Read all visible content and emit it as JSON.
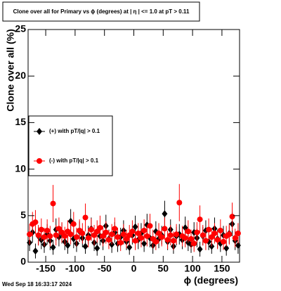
{
  "chart_data": {
    "type": "scatter",
    "title": "Clone  over all for Primary vs ϕ (degrees) at |  η | <= 1.0 at pT > 0.11",
    "xlabel": "ϕ (degrees)",
    "ylabel": "Clone  over all (%)",
    "footer": "Wed Sep 18 16:33:17 2024",
    "xlim": [
      -180,
      180
    ],
    "ylim": [
      0,
      25
    ],
    "xticks": [
      -150,
      -100,
      -50,
      0,
      50,
      100,
      150
    ],
    "yticks": [
      0,
      5,
      10,
      15,
      20,
      25
    ],
    "x": [
      -177.5,
      -172.5,
      -167.5,
      -162.5,
      -157.5,
      -152.5,
      -147.5,
      -142.5,
      -137.5,
      -132.5,
      -127.5,
      -122.5,
      -117.5,
      -112.5,
      -107.5,
      -102.5,
      -97.5,
      -92.5,
      -87.5,
      -82.5,
      -77.5,
      -72.5,
      -67.5,
      -62.5,
      -57.5,
      -52.5,
      -47.5,
      -42.5,
      -37.5,
      -32.5,
      -27.5,
      -22.5,
      -17.5,
      -12.5,
      -7.5,
      -2.5,
      2.5,
      7.5,
      12.5,
      17.5,
      22.5,
      27.5,
      32.5,
      37.5,
      42.5,
      47.5,
      52.5,
      57.5,
      62.5,
      67.5,
      72.5,
      77.5,
      82.5,
      87.5,
      92.5,
      97.5,
      102.5,
      107.5,
      112.5,
      117.5,
      122.5,
      127.5,
      132.5,
      137.5,
      142.5,
      147.5,
      152.5,
      157.5,
      162.5,
      167.5,
      172.5,
      177.5
    ],
    "series": [
      {
        "name": "(+) with pT/|q| > 0.1",
        "color": "#000000",
        "values": [
          2.1,
          3.2,
          1.2,
          2.8,
          2.4,
          1.9,
          3.0,
          2.3,
          1.6,
          3.5,
          2.7,
          3.1,
          2.2,
          1.8,
          4.4,
          2.5,
          2.0,
          3.3,
          2.6,
          1.7,
          2.9,
          3.6,
          2.1,
          1.5,
          2.8,
          2.3,
          3.9,
          2.5,
          1.9,
          3.2,
          2.0,
          2.7,
          3.4,
          2.2,
          1.6,
          2.9,
          3.8,
          2.4,
          3.1,
          2.0,
          4.0,
          2.6,
          1.8,
          3.3,
          2.5,
          2.9,
          5.2,
          2.2,
          3.5,
          1.7,
          2.8,
          3.0,
          2.4,
          3.7,
          2.1,
          1.9,
          3.2,
          2.6,
          1.4,
          2.8,
          3.4,
          2.2,
          1.7,
          3.6,
          2.5,
          2.0,
          2.9,
          1.5,
          3.1,
          4.1,
          2.3,
          1.8
        ],
        "errors": [
          0.9,
          1.1,
          0.8,
          1.0,
          1.0,
          0.9,
          1.1,
          1.0,
          0.8,
          1.2,
          1.0,
          1.1,
          0.9,
          0.9,
          1.3,
          1.0,
          0.9,
          1.1,
          1.0,
          0.8,
          1.0,
          1.2,
          0.9,
          0.8,
          1.0,
          1.0,
          1.2,
          1.0,
          0.9,
          1.1,
          0.9,
          1.0,
          1.1,
          0.9,
          0.8,
          1.0,
          1.2,
          1.0,
          1.1,
          0.9,
          1.2,
          1.0,
          0.9,
          1.1,
          1.0,
          1.0,
          1.4,
          0.9,
          1.1,
          0.8,
          1.0,
          1.1,
          1.0,
          1.2,
          0.9,
          0.9,
          1.1,
          1.0,
          0.8,
          1.0,
          1.1,
          0.9,
          0.8,
          1.2,
          1.0,
          0.9,
          1.0,
          0.8,
          1.1,
          1.3,
          1.0,
          0.9
        ]
      },
      {
        "name": "(-) with pT/|q| > 0.1",
        "color": "#ff0000",
        "values": [
          3.0,
          4.1,
          4.3,
          2.9,
          3.5,
          2.7,
          3.4,
          2.8,
          6.3,
          2.9,
          3.6,
          3.2,
          2.8,
          3.3,
          3.0,
          4.1,
          2.7,
          3.4,
          3.1,
          4.8,
          2.6,
          3.5,
          2.9,
          3.3,
          3.7,
          2.8,
          3.2,
          2.4,
          3.0,
          3.6,
          2.7,
          2.1,
          3.0,
          2.5,
          2.9,
          3.3,
          2.3,
          3.1,
          2.6,
          3.4,
          2.8,
          3.9,
          2.5,
          2.2,
          3.1,
          2.7,
          3.6,
          2.4,
          2.9,
          2.3,
          3.0,
          6.4,
          2.8,
          2.6,
          3.3,
          2.5,
          2.0,
          3.2,
          4.6,
          2.9,
          2.3,
          3.5,
          2.7,
          3.1,
          2.4,
          3.4,
          2.2,
          2.8,
          3.0,
          4.9,
          2.6,
          3.1
        ],
        "errors": [
          1.1,
          1.3,
          1.3,
          1.1,
          1.2,
          1.0,
          1.2,
          1.1,
          2.0,
          1.1,
          1.2,
          1.1,
          1.0,
          1.2,
          1.1,
          1.3,
          1.0,
          1.2,
          1.1,
          1.5,
          1.0,
          1.2,
          1.1,
          1.2,
          1.3,
          1.1,
          1.2,
          1.0,
          1.1,
          1.2,
          1.0,
          0.9,
          1.1,
          1.0,
          1.1,
          1.2,
          1.0,
          1.1,
          1.0,
          1.2,
          1.1,
          1.3,
          1.0,
          0.9,
          1.1,
          1.0,
          1.2,
          1.0,
          1.1,
          1.0,
          1.1,
          2.0,
          1.1,
          1.0,
          1.2,
          1.0,
          0.9,
          1.1,
          1.5,
          1.1,
          1.0,
          1.2,
          1.0,
          1.1,
          1.0,
          1.2,
          0.9,
          1.1,
          1.1,
          1.5,
          1.0,
          1.1
        ]
      }
    ]
  }
}
